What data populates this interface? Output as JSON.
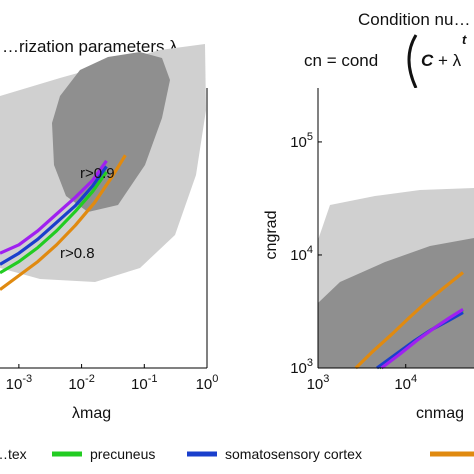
{
  "chart_data": [
    {
      "type": "line",
      "title": "…rization parameters λ",
      "xlabel": "λmag",
      "ylabel": "",
      "xscale": "log",
      "xlim": [
        0.0005,
        1
      ],
      "x_tick_labels": [
        {
          "value": 0.001,
          "base": "10",
          "exp": "-3"
        },
        {
          "value": 0.01,
          "base": "10",
          "exp": "-2"
        },
        {
          "value": 0.1,
          "base": "10",
          "exp": "-1"
        },
        {
          "value": 1,
          "base": "10",
          "exp": "0"
        }
      ],
      "region_labels": [
        {
          "label": "r>0.9",
          "x": 0.012,
          "y": 0.55
        },
        {
          "label": "r>0.8",
          "x": 0.006,
          "y": 0.24
        }
      ],
      "series": [
        {
          "name": "precuneus",
          "color": "#22cc22",
          "x": [
            0.0005,
            0.001,
            0.002,
            0.004,
            0.008,
            0.015,
            0.025
          ],
          "y": [
            0.34,
            0.38,
            0.43,
            0.49,
            0.56,
            0.63,
            0.7
          ]
        },
        {
          "name": "somatosensory cortex",
          "color": "#1a3fcc",
          "x": [
            0.0005,
            0.001,
            0.002,
            0.004,
            0.008,
            0.015,
            0.025
          ],
          "y": [
            0.37,
            0.41,
            0.46,
            0.52,
            0.58,
            0.65,
            0.72
          ]
        },
        {
          "name": "",
          "color": "#a020f0",
          "x": [
            0.0005,
            0.001,
            0.002,
            0.004,
            0.008,
            0.015,
            0.025
          ],
          "y": [
            0.41,
            0.44,
            0.49,
            0.55,
            0.61,
            0.67,
            0.74
          ]
        },
        {
          "name": "",
          "color": "#e08a10",
          "x": [
            0.0005,
            0.001,
            0.002,
            0.004,
            0.008,
            0.016,
            0.03,
            0.05
          ],
          "y": [
            0.28,
            0.33,
            0.38,
            0.44,
            0.51,
            0.59,
            0.68,
            0.76
          ]
        }
      ]
    },
    {
      "type": "line",
      "title": "Condition nu…",
      "formula": {
        "lhs": "cn",
        "eq": " = cond",
        "bold": "C",
        "rest": " + λ"
      },
      "xlabel": "cnmag",
      "ylabel": "cngrad",
      "xscale": "log",
      "yscale": "log",
      "xlim": [
        1000,
        60000
      ],
      "ylim": [
        1000,
        300000
      ],
      "x_tick_labels": [
        {
          "value": 1000,
          "base": "10",
          "exp": "3"
        },
        {
          "value": 10000,
          "base": "10",
          "exp": "4"
        }
      ],
      "y_tick_labels": [
        {
          "value": 1000,
          "base": "10",
          "exp": "3"
        },
        {
          "value": 10000,
          "base": "10",
          "exp": "4"
        },
        {
          "value": 100000,
          "base": "10",
          "exp": "5"
        }
      ],
      "series": [
        {
          "name": "precuneus",
          "color": "#22cc22",
          "x": [
            5000,
            8000,
            13000,
            20000,
            30000,
            45000
          ],
          "y": [
            1000,
            1300,
            1750,
            2200,
            2700,
            3200
          ]
        },
        {
          "name": "somatosensory cortex",
          "color": "#1a3fcc",
          "x": [
            4700,
            7500,
            12000,
            19000,
            30000,
            45000
          ],
          "y": [
            1000,
            1300,
            1700,
            2150,
            2600,
            3100
          ]
        },
        {
          "name": "",
          "color": "#a020f0",
          "x": [
            5300,
            8500,
            13500,
            21000,
            32000,
            45000
          ],
          "y": [
            1000,
            1320,
            1760,
            2250,
            2800,
            3300
          ]
        },
        {
          "name": "",
          "color": "#e08a10",
          "x": [
            2700,
            4200,
            7000,
            11000,
            17000,
            27000,
            45000
          ],
          "y": [
            1000,
            1400,
            2000,
            2800,
            3800,
            5100,
            7000
          ]
        }
      ]
    }
  ],
  "legend": [
    {
      "label": "…tex",
      "color": ""
    },
    {
      "label": "precuneus",
      "color": "#22cc22"
    },
    {
      "label": "somatosensory cortex",
      "color": "#1a3fcc"
    },
    {
      "label": "",
      "color": "#e08a10"
    }
  ],
  "colors": {
    "light_region": "#d0d0d0",
    "dark_region": "#8f8f8f",
    "axis": "#000000"
  }
}
